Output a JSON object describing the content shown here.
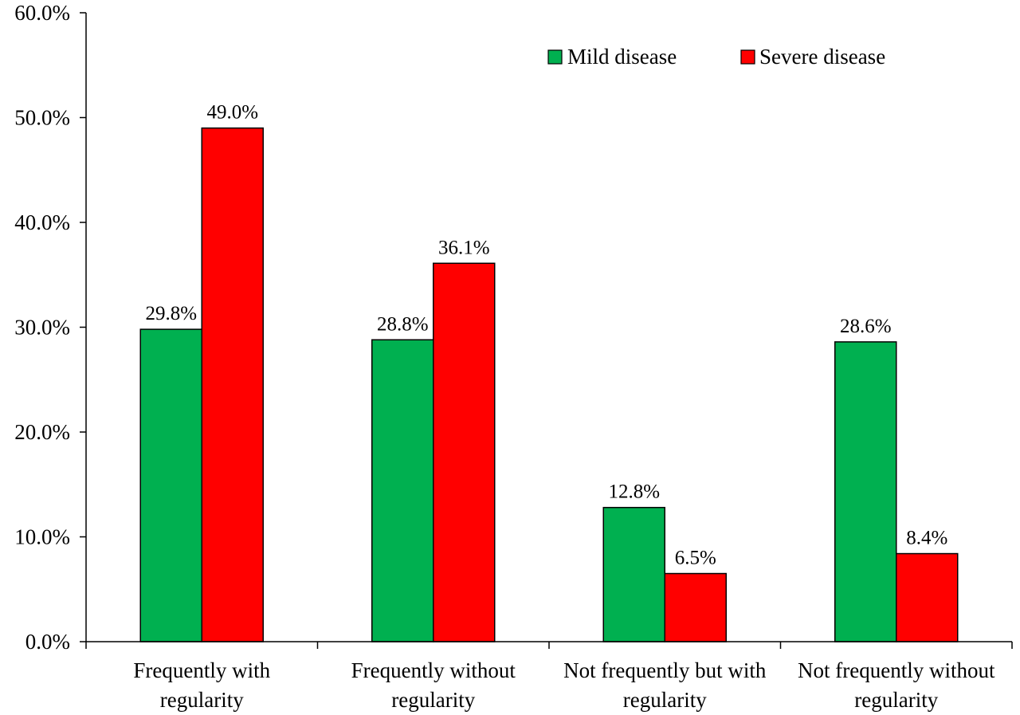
{
  "chart_data": {
    "type": "bar",
    "title": "",
    "xlabel": "",
    "ylabel": "",
    "ylim": [
      0,
      60
    ],
    "yticks": [
      0,
      10,
      20,
      30,
      40,
      50,
      60
    ],
    "ytick_labels": [
      "0.0%",
      "10.0%",
      "20.0%",
      "30.0%",
      "40.0%",
      "50.0%",
      "60.0%"
    ],
    "grid": false,
    "legend_position": "top-right",
    "categories": [
      [
        "Frequently with",
        "regularity"
      ],
      [
        "Frequently without",
        "regularity"
      ],
      [
        "Not frequently but with",
        "regularity"
      ],
      [
        "Not frequently without",
        "regularity"
      ]
    ],
    "series": [
      {
        "name": "Mild disease",
        "color": "#00b050",
        "values": [
          29.8,
          28.8,
          12.8,
          28.6
        ],
        "labels": [
          "29.8%",
          "28.8%",
          "12.8%",
          "28.6%"
        ]
      },
      {
        "name": "Severe disease",
        "color": "#ff0000",
        "values": [
          49.0,
          36.1,
          6.5,
          8.4
        ],
        "labels": [
          "49.0%",
          "36.1%",
          "6.5%",
          "8.4%"
        ]
      }
    ]
  }
}
